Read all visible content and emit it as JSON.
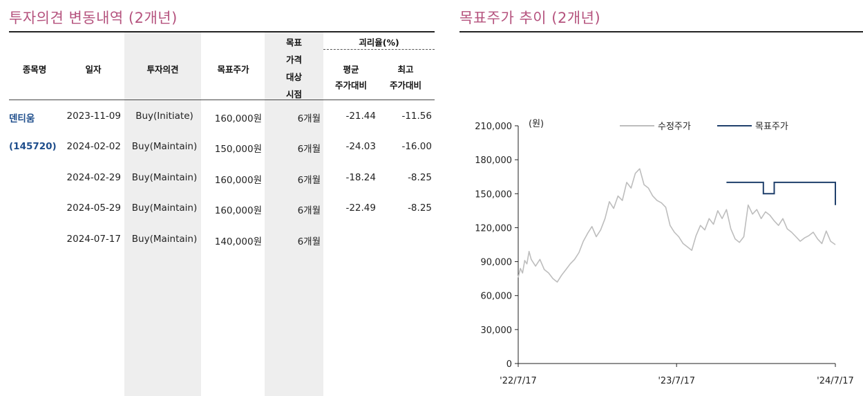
{
  "left_section": {
    "title": "투자의견 변동내역 (2개년)",
    "headers": {
      "stock": "종목명",
      "date": "일자",
      "opinion": "투자의견",
      "target_price": "목표주가",
      "target_period_lines": [
        "목표",
        "가격",
        "대상",
        "시점"
      ],
      "disparity": "괴리율(%)",
      "avg_lines": [
        "평균",
        "주가대비"
      ],
      "max_lines": [
        "최고",
        "주가대비"
      ]
    },
    "stock_name": "덴티움",
    "stock_code": "(145720)",
    "rows": [
      {
        "date": "2023-11-09",
        "opinion": "Buy(Initiate)",
        "target": "160,000원",
        "period": "6개월",
        "avg": "-21.44",
        "max": "-11.56"
      },
      {
        "date": "2024-02-02",
        "opinion": "Buy(Maintain)",
        "target": "150,000원",
        "period": "6개월",
        "avg": "-24.03",
        "max": "-16.00"
      },
      {
        "date": "2024-02-29",
        "opinion": "Buy(Maintain)",
        "target": "160,000원",
        "period": "6개월",
        "avg": "-18.24",
        "max": "-8.25"
      },
      {
        "date": "2024-05-29",
        "opinion": "Buy(Maintain)",
        "target": "160,000원",
        "period": "6개월",
        "avg": "-22.49",
        "max": "-8.25"
      },
      {
        "date": "2024-07-17",
        "opinion": "Buy(Maintain)",
        "target": "140,000원",
        "period": "6개월",
        "avg": "",
        "max": ""
      }
    ]
  },
  "right_section": {
    "title": "목표주가 추이 (2개년)"
  },
  "chart_data": {
    "type": "line",
    "unit_label": "(원)",
    "ylim": [
      0,
      210000
    ],
    "yticks": [
      0,
      30000,
      60000,
      90000,
      120000,
      150000,
      180000,
      210000
    ],
    "ytick_labels": [
      "0",
      "30,000",
      "60,000",
      "90,000",
      "120,000",
      "150,000",
      "180,000",
      "210,000"
    ],
    "xticks": [
      "'22/7/17",
      "'23/7/17",
      "'24/7/17"
    ],
    "x_range_days": [
      0,
      731
    ],
    "xtick_days": [
      0,
      365,
      731
    ],
    "legend_placement": "top",
    "series": [
      {
        "name": "수정주가",
        "color": "#bdbdbd",
        "points": [
          [
            0,
            76000
          ],
          [
            5,
            84000
          ],
          [
            10,
            80000
          ],
          [
            15,
            91000
          ],
          [
            20,
            88000
          ],
          [
            25,
            99000
          ],
          [
            30,
            92000
          ],
          [
            40,
            86000
          ],
          [
            50,
            92000
          ],
          [
            60,
            83000
          ],
          [
            70,
            80000
          ],
          [
            80,
            75000
          ],
          [
            90,
            72000
          ],
          [
            100,
            78000
          ],
          [
            110,
            83000
          ],
          [
            120,
            88000
          ],
          [
            130,
            92000
          ],
          [
            140,
            98000
          ],
          [
            150,
            108000
          ],
          [
            160,
            115000
          ],
          [
            170,
            121000
          ],
          [
            180,
            112000
          ],
          [
            190,
            118000
          ],
          [
            200,
            128000
          ],
          [
            210,
            143000
          ],
          [
            220,
            137000
          ],
          [
            230,
            148000
          ],
          [
            240,
            144000
          ],
          [
            250,
            160000
          ],
          [
            260,
            155000
          ],
          [
            270,
            168000
          ],
          [
            280,
            172000
          ],
          [
            290,
            158000
          ],
          [
            300,
            155000
          ],
          [
            310,
            148000
          ],
          [
            320,
            144000
          ],
          [
            330,
            142000
          ],
          [
            340,
            138000
          ],
          [
            350,
            122000
          ],
          [
            360,
            116000
          ],
          [
            370,
            112000
          ],
          [
            380,
            106000
          ],
          [
            390,
            103000
          ],
          [
            400,
            100000
          ],
          [
            410,
            113000
          ],
          [
            420,
            122000
          ],
          [
            430,
            118000
          ],
          [
            440,
            128000
          ],
          [
            450,
            123000
          ],
          [
            460,
            135000
          ],
          [
            470,
            128000
          ],
          [
            480,
            136000
          ],
          [
            490,
            119000
          ],
          [
            500,
            110000
          ],
          [
            510,
            107000
          ],
          [
            520,
            112000
          ],
          [
            530,
            140000
          ],
          [
            540,
            132000
          ],
          [
            550,
            136000
          ],
          [
            560,
            128000
          ],
          [
            570,
            134000
          ],
          [
            580,
            131000
          ],
          [
            590,
            126000
          ],
          [
            600,
            122000
          ],
          [
            610,
            128000
          ],
          [
            620,
            119000
          ],
          [
            630,
            116000
          ],
          [
            640,
            112000
          ],
          [
            650,
            108000
          ],
          [
            660,
            111000
          ],
          [
            670,
            113000
          ],
          [
            680,
            116000
          ],
          [
            690,
            110000
          ],
          [
            700,
            106000
          ],
          [
            710,
            117000
          ],
          [
            720,
            108000
          ],
          [
            731,
            105000
          ]
        ]
      },
      {
        "name": "목표주가",
        "color": "#1f3f6b",
        "segments": [
          [
            [
              480,
              160000
            ],
            [
              565,
              160000
            ]
          ],
          [
            [
              565,
              150000
            ],
            [
              590,
              150000
            ]
          ],
          [
            [
              590,
              160000
            ],
            [
              731,
              160000
            ]
          ],
          [
            [
              731,
              140000
            ],
            [
              731,
              140000
            ]
          ]
        ]
      }
    ]
  }
}
